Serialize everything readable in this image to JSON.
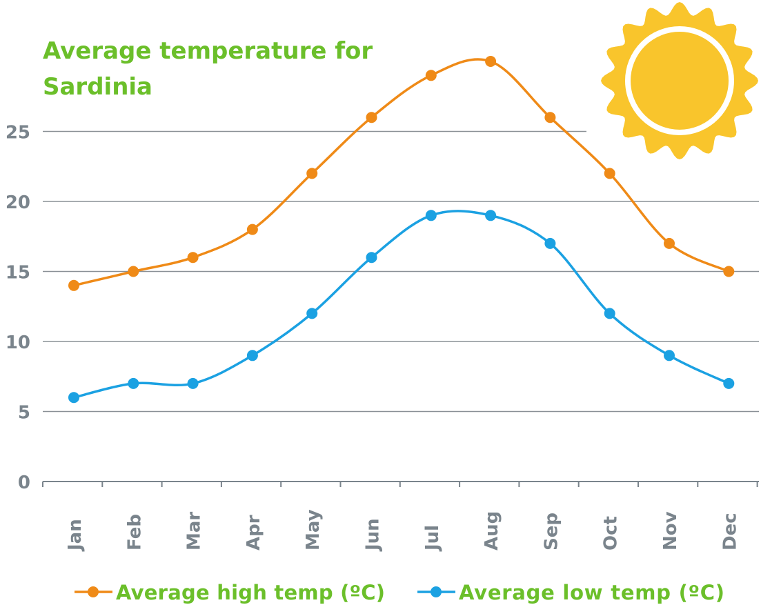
{
  "chart_data": {
    "type": "line",
    "title": "Average temperature for Sardinia",
    "categories": [
      "Jan",
      "Feb",
      "Mar",
      "Apr",
      "May",
      "Jun",
      "Jul",
      "Aug",
      "Sep",
      "Oct",
      "Nov",
      "Dec"
    ],
    "series": [
      {
        "name": "Average high temp (ºC)",
        "color": "#ef8a17",
        "values": [
          14,
          15,
          16,
          18,
          22,
          26,
          29,
          30,
          26,
          22,
          17,
          15
        ]
      },
      {
        "name": "Average low temp (ºC)",
        "color": "#1ba1e2",
        "values": [
          6,
          7,
          7,
          9,
          12,
          16,
          19,
          19,
          17,
          12,
          9,
          7
        ]
      }
    ],
    "yticks": [
      0,
      5,
      10,
      15,
      20,
      25
    ],
    "ylim": [
      0,
      30
    ],
    "grid": true,
    "legend": "bottom",
    "xlabel": "",
    "ylabel": "",
    "colors": {
      "title": "#6bbf2a",
      "axis": "#7a848c",
      "sun": "#f9c52c"
    },
    "decoration": "sun-icon"
  }
}
